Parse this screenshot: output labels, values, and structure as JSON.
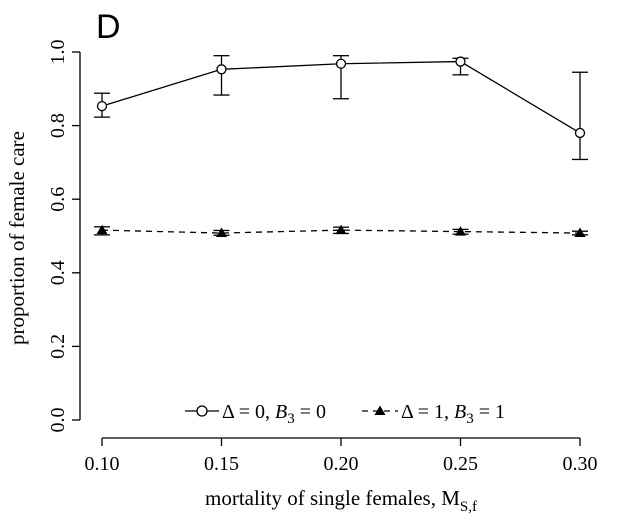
{
  "chart_data": {
    "type": "line",
    "panel_label": "D",
    "xlabel": "mortality of single females, M",
    "xlabel_sub": "S,f",
    "ylabel": "proportion of female care",
    "x": [
      0.1,
      0.15,
      0.2,
      0.25,
      0.3
    ],
    "x_tick_labels": [
      "0.10",
      "0.15",
      "0.20",
      "0.25",
      "0.30"
    ],
    "xlim": [
      0.1,
      0.3
    ],
    "y_ticks": [
      0.0,
      0.2,
      0.4,
      0.6,
      0.8,
      1.0
    ],
    "y_tick_labels": [
      "0.0",
      "0.2",
      "0.4",
      "0.6",
      "0.8",
      "1.0"
    ],
    "ylim": [
      0.0,
      1.0
    ],
    "grid": false,
    "legend_placement": "bottom-center",
    "series": [
      {
        "legend": {
          "delta_part": "Δ = 0, ",
          "b_symbol": "B",
          "b_sub": "3",
          "b_rest": " = 0"
        },
        "marker": "open-circle",
        "line_style": "solid",
        "color": "#000000",
        "values": [
          0.853,
          0.953,
          0.968,
          0.974,
          0.78
        ],
        "error_low": [
          0.823,
          0.883,
          0.873,
          0.938,
          0.708
        ],
        "error_high": [
          0.888,
          0.99,
          0.99,
          0.983,
          0.945
        ]
      },
      {
        "legend": {
          "delta_part": "Δ = 1, ",
          "b_symbol": "B",
          "b_sub": "3",
          "b_rest": " = 1"
        },
        "marker": "filled-triangle",
        "line_style": "dashed",
        "color": "#000000",
        "values": [
          0.516,
          0.508,
          0.516,
          0.512,
          0.508
        ],
        "error_low": [
          0.503,
          0.502,
          0.507,
          0.505,
          0.503
        ],
        "error_high": [
          0.525,
          0.515,
          0.524,
          0.518,
          0.513
        ]
      }
    ]
  }
}
